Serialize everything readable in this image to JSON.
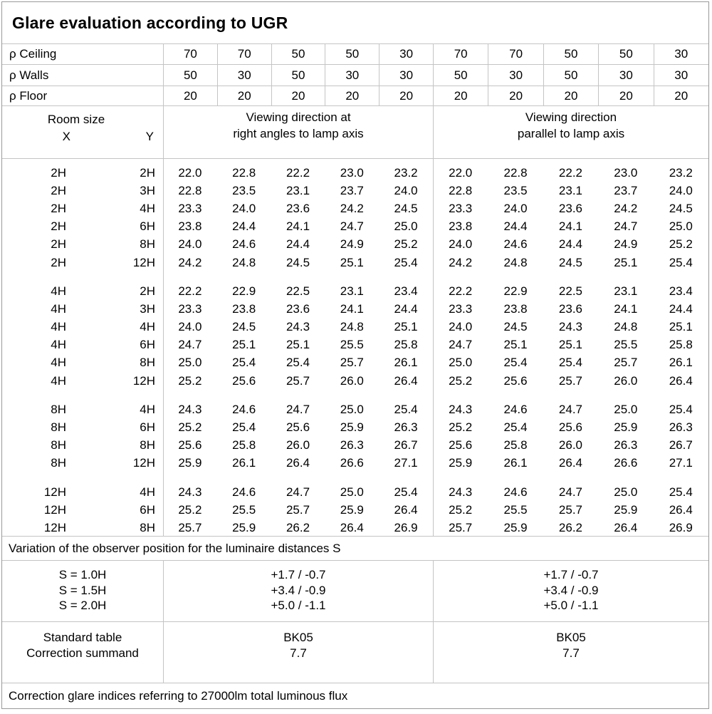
{
  "title": "Glare evaluation according to UGR",
  "reflectances": {
    "rows": [
      {
        "label": "ρ Ceiling",
        "values": [
          "70",
          "70",
          "50",
          "50",
          "30",
          "70",
          "70",
          "50",
          "50",
          "30"
        ]
      },
      {
        "label": "ρ Walls",
        "values": [
          "50",
          "30",
          "50",
          "30",
          "30",
          "50",
          "30",
          "50",
          "30",
          "30"
        ]
      },
      {
        "label": "ρ Floor",
        "values": [
          "20",
          "20",
          "20",
          "20",
          "20",
          "20",
          "20",
          "20",
          "20",
          "20"
        ]
      }
    ]
  },
  "header": {
    "room_size_label": "Room size",
    "x_label": "X",
    "y_label": "Y",
    "group1_line1": "Viewing direction at",
    "group1_line2": "right angles to lamp axis",
    "group2_line1": "Viewing direction",
    "group2_line2": "parallel to lamp axis"
  },
  "ugr_groups": [
    {
      "rows": [
        {
          "x": "2H",
          "y": "2H",
          "right_angles": [
            "22.0",
            "22.8",
            "22.2",
            "23.0",
            "23.2"
          ],
          "parallel": [
            "22.0",
            "22.8",
            "22.2",
            "23.0",
            "23.2"
          ]
        },
        {
          "x": "2H",
          "y": "3H",
          "right_angles": [
            "22.8",
            "23.5",
            "23.1",
            "23.7",
            "24.0"
          ],
          "parallel": [
            "22.8",
            "23.5",
            "23.1",
            "23.7",
            "24.0"
          ]
        },
        {
          "x": "2H",
          "y": "4H",
          "right_angles": [
            "23.3",
            "24.0",
            "23.6",
            "24.2",
            "24.5"
          ],
          "parallel": [
            "23.3",
            "24.0",
            "23.6",
            "24.2",
            "24.5"
          ]
        },
        {
          "x": "2H",
          "y": "6H",
          "right_angles": [
            "23.8",
            "24.4",
            "24.1",
            "24.7",
            "25.0"
          ],
          "parallel": [
            "23.8",
            "24.4",
            "24.1",
            "24.7",
            "25.0"
          ]
        },
        {
          "x": "2H",
          "y": "8H",
          "right_angles": [
            "24.0",
            "24.6",
            "24.4",
            "24.9",
            "25.2"
          ],
          "parallel": [
            "24.0",
            "24.6",
            "24.4",
            "24.9",
            "25.2"
          ]
        },
        {
          "x": "2H",
          "y": "12H",
          "right_angles": [
            "24.2",
            "24.8",
            "24.5",
            "25.1",
            "25.4"
          ],
          "parallel": [
            "24.2",
            "24.8",
            "24.5",
            "25.1",
            "25.4"
          ]
        }
      ]
    },
    {
      "rows": [
        {
          "x": "4H",
          "y": "2H",
          "right_angles": [
            "22.2",
            "22.9",
            "22.5",
            "23.1",
            "23.4"
          ],
          "parallel": [
            "22.2",
            "22.9",
            "22.5",
            "23.1",
            "23.4"
          ]
        },
        {
          "x": "4H",
          "y": "3H",
          "right_angles": [
            "23.3",
            "23.8",
            "23.6",
            "24.1",
            "24.4"
          ],
          "parallel": [
            "23.3",
            "23.8",
            "23.6",
            "24.1",
            "24.4"
          ]
        },
        {
          "x": "4H",
          "y": "4H",
          "right_angles": [
            "24.0",
            "24.5",
            "24.3",
            "24.8",
            "25.1"
          ],
          "parallel": [
            "24.0",
            "24.5",
            "24.3",
            "24.8",
            "25.1"
          ]
        },
        {
          "x": "4H",
          "y": "6H",
          "right_angles": [
            "24.7",
            "25.1",
            "25.1",
            "25.5",
            "25.8"
          ],
          "parallel": [
            "24.7",
            "25.1",
            "25.1",
            "25.5",
            "25.8"
          ]
        },
        {
          "x": "4H",
          "y": "8H",
          "right_angles": [
            "25.0",
            "25.4",
            "25.4",
            "25.7",
            "26.1"
          ],
          "parallel": [
            "25.0",
            "25.4",
            "25.4",
            "25.7",
            "26.1"
          ]
        },
        {
          "x": "4H",
          "y": "12H",
          "right_angles": [
            "25.2",
            "25.6",
            "25.7",
            "26.0",
            "26.4"
          ],
          "parallel": [
            "25.2",
            "25.6",
            "25.7",
            "26.0",
            "26.4"
          ]
        }
      ]
    },
    {
      "rows": [
        {
          "x": "8H",
          "y": "4H",
          "right_angles": [
            "24.3",
            "24.6",
            "24.7",
            "25.0",
            "25.4"
          ],
          "parallel": [
            "24.3",
            "24.6",
            "24.7",
            "25.0",
            "25.4"
          ]
        },
        {
          "x": "8H",
          "y": "6H",
          "right_angles": [
            "25.2",
            "25.4",
            "25.6",
            "25.9",
            "26.3"
          ],
          "parallel": [
            "25.2",
            "25.4",
            "25.6",
            "25.9",
            "26.3"
          ]
        },
        {
          "x": "8H",
          "y": "8H",
          "right_angles": [
            "25.6",
            "25.8",
            "26.0",
            "26.3",
            "26.7"
          ],
          "parallel": [
            "25.6",
            "25.8",
            "26.0",
            "26.3",
            "26.7"
          ]
        },
        {
          "x": "8H",
          "y": "12H",
          "right_angles": [
            "25.9",
            "26.1",
            "26.4",
            "26.6",
            "27.1"
          ],
          "parallel": [
            "25.9",
            "26.1",
            "26.4",
            "26.6",
            "27.1"
          ]
        }
      ]
    },
    {
      "rows": [
        {
          "x": "12H",
          "y": "4H",
          "right_angles": [
            "24.3",
            "24.6",
            "24.7",
            "25.0",
            "25.4"
          ],
          "parallel": [
            "24.3",
            "24.6",
            "24.7",
            "25.0",
            "25.4"
          ]
        },
        {
          "x": "12H",
          "y": "6H",
          "right_angles": [
            "25.2",
            "25.5",
            "25.7",
            "25.9",
            "26.4"
          ],
          "parallel": [
            "25.2",
            "25.5",
            "25.7",
            "25.9",
            "26.4"
          ]
        },
        {
          "x": "12H",
          "y": "8H",
          "right_angles": [
            "25.7",
            "25.9",
            "26.2",
            "26.4",
            "26.9"
          ],
          "parallel": [
            "25.7",
            "25.9",
            "26.2",
            "26.4",
            "26.9"
          ]
        }
      ]
    }
  ],
  "variation_note": "Variation of the observer position for the luminaire distances S",
  "observer_variation": {
    "labels": [
      "S = 1.0H",
      "S = 1.5H",
      "S = 2.0H"
    ],
    "right_angles": [
      "+1.7 / -0.7",
      "+3.4 / -0.9",
      "+5.0 / -1.1"
    ],
    "parallel": [
      "+1.7 / -0.7",
      "+3.4 / -0.9",
      "+5.0 / -1.1"
    ]
  },
  "summary": {
    "labels": [
      "Standard table",
      "Correction summand"
    ],
    "right_angles": [
      "BK05",
      "7.7"
    ],
    "parallel": [
      "BK05",
      "7.7"
    ]
  },
  "footer_note": "Correction glare indices referring to 27000lm total luminous flux"
}
